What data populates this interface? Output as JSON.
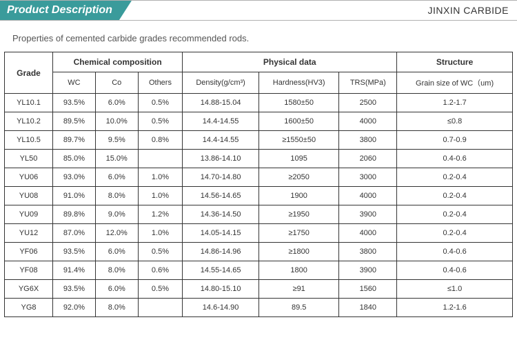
{
  "header": {
    "title": "Product Description",
    "brand": "JINXIN CARBIDE"
  },
  "subtitle": "Properties of cemented carbide grades recommended rods.",
  "table": {
    "group_headers": {
      "grade": "Grade",
      "chemical": "Chemical composition",
      "physical": "Physical data",
      "structure": "Structure"
    },
    "sub_headers": {
      "wc": "WC",
      "co": "Co",
      "others": "Others",
      "density": "Density(g/cm³)",
      "hardness": "Hardness(HV3)",
      "trs": "TRS(MPa)",
      "grain": "Grain size of WC（um)"
    },
    "rows": [
      {
        "grade": "YL10.1",
        "wc": "93.5%",
        "co": "6.0%",
        "others": "0.5%",
        "density": "14.88-15.04",
        "hardness": "1580±50",
        "trs": "2500",
        "grain": "1.2-1.7"
      },
      {
        "grade": "YL10.2",
        "wc": "89.5%",
        "co": "10.0%",
        "others": "0.5%",
        "density": "14.4-14.55",
        "hardness": "1600±50",
        "trs": "4000",
        "grain": "≤0.8"
      },
      {
        "grade": "YL10.5",
        "wc": "89.7%",
        "co": "9.5%",
        "others": "0.8%",
        "density": "14.4-14.55",
        "hardness": "≥1550±50",
        "trs": "3800",
        "grain": "0.7-0.9"
      },
      {
        "grade": "YL50",
        "wc": "85.0%",
        "co": "15.0%",
        "others": "",
        "density": "13.86-14.10",
        "hardness": "1095",
        "trs": "2060",
        "grain": "0.4-0.6"
      },
      {
        "grade": "YU06",
        "wc": "93.0%",
        "co": "6.0%",
        "others": "1.0%",
        "density": "14.70-14.80",
        "hardness": "≥2050",
        "trs": "3000",
        "grain": "0.2-0.4"
      },
      {
        "grade": "YU08",
        "wc": "91.0%",
        "co": "8.0%",
        "others": "1.0%",
        "density": "14.56-14.65",
        "hardness": "1900",
        "trs": "4000",
        "grain": "0.2-0.4"
      },
      {
        "grade": "YU09",
        "wc": "89.8%",
        "co": "9.0%",
        "others": "1.2%",
        "density": "14.36-14.50",
        "hardness": "≥1950",
        "trs": "3900",
        "grain": "0.2-0.4"
      },
      {
        "grade": "YU12",
        "wc": "87.0%",
        "co": "12.0%",
        "others": "1.0%",
        "density": "14.05-14.15",
        "hardness": "≥1750",
        "trs": "4000",
        "grain": "0.2-0.4"
      },
      {
        "grade": "YF06",
        "wc": "93.5%",
        "co": "6.0%",
        "others": "0.5%",
        "density": "14.86-14.96",
        "hardness": "≥1800",
        "trs": "3800",
        "grain": "0.4-0.6"
      },
      {
        "grade": "YF08",
        "wc": "91.4%",
        "co": "8.0%",
        "others": "0.6%",
        "density": "14.55-14.65",
        "hardness": "1800",
        "trs": "3900",
        "grain": "0.4-0.6"
      },
      {
        "grade": "YG6X",
        "wc": "93.5%",
        "co": "6.0%",
        "others": "0.5%",
        "density": "14.80-15.10",
        "hardness": "≥91",
        "trs": "1560",
        "grain": "≤1.0"
      },
      {
        "grade": "YG8",
        "wc": "92.0%",
        "co": "8.0%",
        "others": "",
        "density": "14.6-14.90",
        "hardness": "89.5",
        "trs": "1840",
        "grain": "1.2-1.6"
      }
    ]
  },
  "styling": {
    "header_bg": "#3a9b9b",
    "header_text": "#ffffff",
    "border_color": "#333333",
    "body_text": "#333333",
    "subtitle_color": "#555555",
    "font_family": "Arial, sans-serif",
    "table_font_size_pt": 11,
    "header_font_size_pt": 16
  }
}
